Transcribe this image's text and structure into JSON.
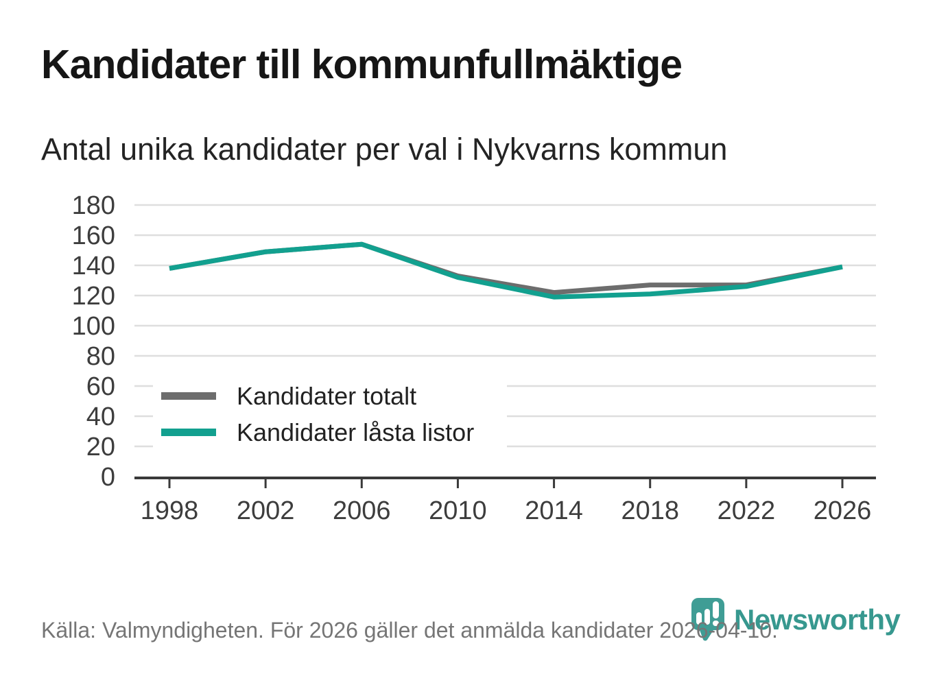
{
  "header": {
    "title": "Kandidater till kommunfullmäktige",
    "subtitle": "Antal unika kandidater per val i Nykvarns kommun"
  },
  "chart_data": {
    "type": "line",
    "x": [
      1998,
      2002,
      2006,
      2010,
      2014,
      2018,
      2022,
      2026
    ],
    "series": [
      {
        "name": "Kandidater totalt",
        "color": "#6d6d6d",
        "values": [
          138,
          149,
          154,
          133,
          122,
          127,
          127,
          139
        ]
      },
      {
        "name": "Kandidater låsta listor",
        "color": "#12a08f",
        "values": [
          138,
          149,
          154,
          132,
          119,
          121,
          126,
          139
        ]
      }
    ],
    "ylim": [
      0,
      180
    ],
    "yticks": [
      0,
      20,
      40,
      60,
      80,
      100,
      120,
      140,
      160,
      180
    ],
    "grid": "horizontal",
    "legend_position": "inside-lower-left",
    "title": "Kandidater till kommunfullmäktige",
    "xlabel": "",
    "ylabel": ""
  },
  "footer": {
    "source_text": "Källa: Valmyndigheten. För 2026 gäller det anmälda kandidater 2026-04-10.",
    "brand": "Newsworthy"
  },
  "colors": {
    "accent_teal": "#12a08f",
    "line_gray": "#6d6d6d",
    "logo_teal": "#3f9d95",
    "axis": "#3a3a3a",
    "grid": "#dedede",
    "tick_text": "#3d3d3d",
    "muted_text": "#757575"
  }
}
